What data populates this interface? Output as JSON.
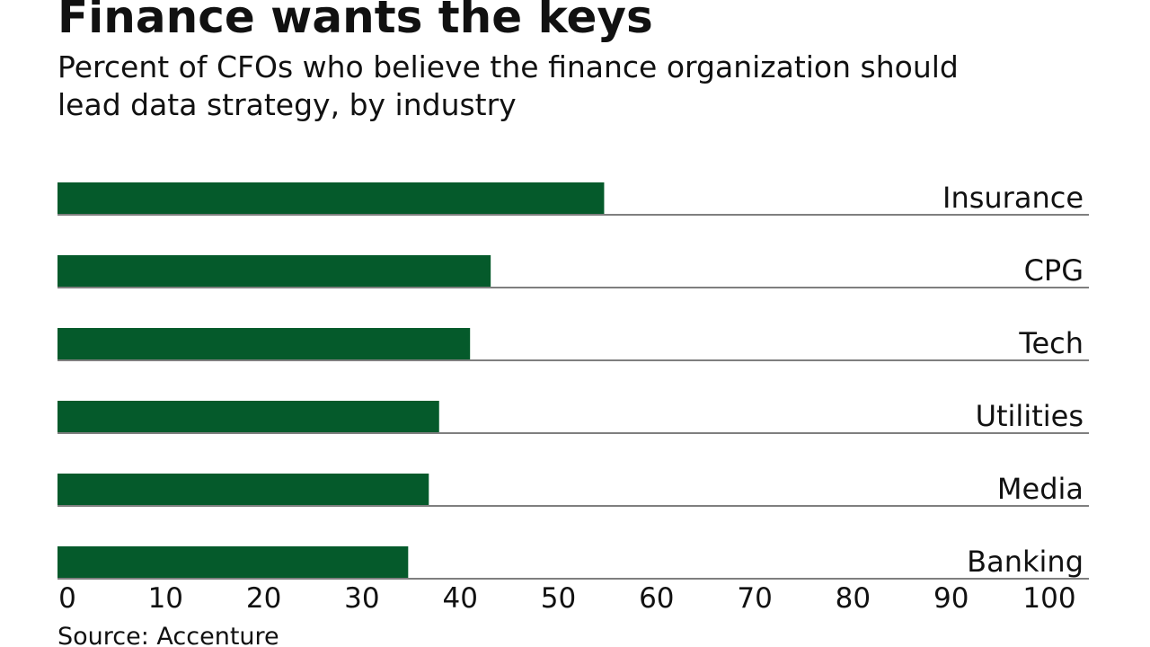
{
  "chart_data": {
    "type": "barh",
    "title": "Finance wants the keys",
    "subtitle": [
      "Percent of CFOs who believe the finance organization should",
      "lead data strategy, by industry"
    ],
    "source": "Source: Accenture",
    "categories": [
      "Insurance",
      "CPG",
      "Tech",
      "Utilities",
      "Media",
      "Banking"
    ],
    "values": [
      53,
      42,
      40,
      37,
      36,
      34
    ],
    "color": "#055a2b",
    "xlim": [
      0,
      100
    ],
    "xticks": [
      0,
      10,
      20,
      30,
      40,
      50,
      60,
      70,
      80,
      90,
      100
    ]
  }
}
